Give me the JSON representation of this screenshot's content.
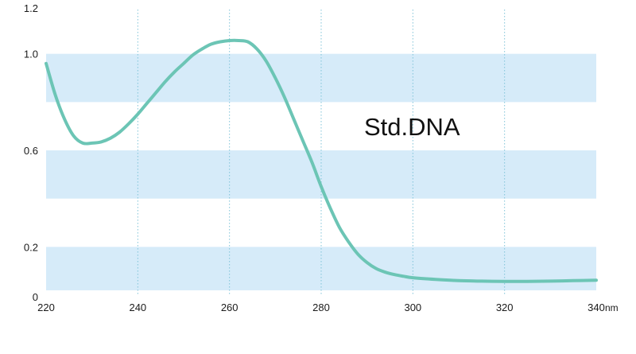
{
  "chart_data": {
    "type": "line",
    "title": "",
    "xlabel": "",
    "ylabel": "",
    "x_unit": "nm",
    "annotation": "Std.DNA",
    "xlim": [
      220,
      340
    ],
    "ylim": [
      0,
      1.2
    ],
    "x_ticks": [
      "220",
      "240",
      "260",
      "280",
      "300",
      "320",
      "340"
    ],
    "y_ticks": [
      "0",
      "0.2",
      "0.6",
      "1.0",
      "1.2"
    ],
    "y_tick_values": [
      0,
      0.2,
      0.6,
      1.0,
      1.2
    ],
    "bands": [
      [
        0.02,
        0.2
      ],
      [
        0.4,
        0.6
      ],
      [
        0.8,
        1.0
      ]
    ],
    "grid": {
      "vertical": true,
      "horizontal": false
    },
    "line_color": "#6cc5b5",
    "band_color": "#d6ebf9",
    "gridline_color": "#7fc3d8",
    "series": [
      {
        "x": [
          220,
          222,
          224,
          226,
          228,
          230,
          232,
          234,
          236,
          238,
          240,
          242,
          244,
          246,
          248,
          250,
          252,
          254,
          256,
          258,
          260,
          262,
          264,
          266,
          268,
          270,
          272,
          274,
          276,
          278,
          280,
          282,
          284,
          286,
          288,
          290,
          292,
          294,
          296,
          298,
          300,
          305,
          310,
          315,
          320,
          325,
          330,
          335,
          340
        ],
        "y": [
          0.96,
          0.83,
          0.73,
          0.66,
          0.63,
          0.63,
          0.635,
          0.65,
          0.675,
          0.71,
          0.75,
          0.795,
          0.84,
          0.885,
          0.925,
          0.96,
          0.995,
          1.02,
          1.04,
          1.05,
          1.055,
          1.055,
          1.05,
          1.02,
          0.97,
          0.9,
          0.82,
          0.73,
          0.64,
          0.55,
          0.45,
          0.36,
          0.28,
          0.22,
          0.17,
          0.135,
          0.11,
          0.095,
          0.085,
          0.078,
          0.072,
          0.065,
          0.06,
          0.058,
          0.057,
          0.057,
          0.058,
          0.06,
          0.062
        ]
      }
    ]
  }
}
